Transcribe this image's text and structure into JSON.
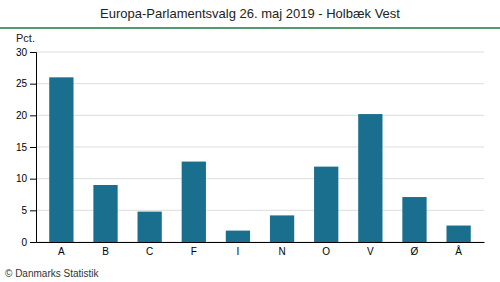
{
  "chart_data": {
    "type": "bar",
    "title": "Europa-Parlamentsvalg 26. maj 2019 - Holbæk Vest",
    "ylabel": "Pct.",
    "footer": "© Danmarks Statistik",
    "categories": [
      "A",
      "B",
      "C",
      "F",
      "I",
      "N",
      "O",
      "V",
      "Ø",
      "Å"
    ],
    "values": [
      26.0,
      9.0,
      4.8,
      12.7,
      1.8,
      4.2,
      11.9,
      20.2,
      7.1,
      2.6
    ],
    "color": "#1a6e8e",
    "ylim": [
      0,
      30
    ],
    "yticks": [
      0,
      5,
      10,
      15,
      20,
      25,
      30
    ],
    "grid": true
  }
}
